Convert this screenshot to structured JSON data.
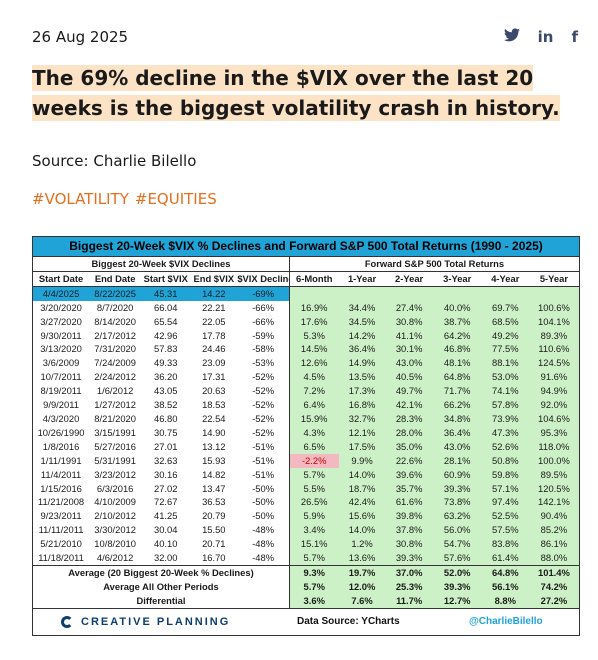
{
  "header": {
    "date": "26 Aug 2025",
    "social": [
      {
        "icon": "twitter-icon",
        "glyph": "🐦"
      },
      {
        "icon": "linkedin-icon",
        "glyph": "in"
      },
      {
        "icon": "facebook-icon",
        "glyph": "f"
      }
    ]
  },
  "article": {
    "headline": "The 69% decline in the $VIX over the last 20 weeks is the biggest volatility crash in history.",
    "source": "Source: Charlie Bilello",
    "tags": [
      "#VOLATILITY",
      "#EQUITIES"
    ]
  },
  "table": {
    "title": "Biggest 20-Week $VIX % Declines and Forward S&P 500 Total Returns (1990 - 2025)",
    "left_group": "Biggest 20-Week $VIX Declines",
    "right_group": "Forward S&P 500 Total Returns",
    "columns": [
      "Start Date",
      "End Date",
      "Start $VIX",
      "End $VIX",
      "$VIX Decline",
      "6-Month",
      "1-Year",
      "2-Year",
      "3-Year",
      "4-Year",
      "5-Year"
    ],
    "rows": [
      [
        "4/4/2025",
        "8/22/2025",
        "45.31",
        "14.22",
        "-69%",
        "",
        "",
        "",
        "",
        "",
        ""
      ],
      [
        "3/20/2020",
        "8/7/2020",
        "66.04",
        "22.21",
        "-66%",
        "16.9%",
        "34.4%",
        "27.4%",
        "40.0%",
        "69.7%",
        "100.6%"
      ],
      [
        "3/27/2020",
        "8/14/2020",
        "65.54",
        "22.05",
        "-66%",
        "17.6%",
        "34.5%",
        "30.8%",
        "38.7%",
        "68.5%",
        "104.1%"
      ],
      [
        "9/30/2011",
        "2/17/2012",
        "42.96",
        "17.78",
        "-59%",
        "5.3%",
        "14.2%",
        "41.1%",
        "64.2%",
        "49.2%",
        "89.3%"
      ],
      [
        "3/13/2020",
        "7/31/2020",
        "57.83",
        "24.46",
        "-58%",
        "14.5%",
        "36.4%",
        "30.1%",
        "46.8%",
        "77.5%",
        "110.6%"
      ],
      [
        "3/6/2009",
        "7/24/2009",
        "49.33",
        "23.09",
        "-53%",
        "12.6%",
        "14.9%",
        "43.0%",
        "48.1%",
        "88.1%",
        "124.5%"
      ],
      [
        "10/7/2011",
        "2/24/2012",
        "36.20",
        "17.31",
        "-52%",
        "4.5%",
        "13.5%",
        "40.5%",
        "64.8%",
        "53.0%",
        "91.6%"
      ],
      [
        "8/19/2011",
        "1/6/2012",
        "43.05",
        "20.63",
        "-52%",
        "7.2%",
        "17.3%",
        "49.7%",
        "71.7%",
        "74.1%",
        "94.9%"
      ],
      [
        "9/9/2011",
        "1/27/2012",
        "38.52",
        "18.53",
        "-52%",
        "6.4%",
        "16.8%",
        "42.1%",
        "66.2%",
        "57.8%",
        "92.0%"
      ],
      [
        "4/3/2020",
        "8/21/2020",
        "46.80",
        "22.54",
        "-52%",
        "15.9%",
        "32.7%",
        "28.3%",
        "34.8%",
        "73.9%",
        "104.6%"
      ],
      [
        "10/26/1990",
        "3/15/1991",
        "30.75",
        "14.90",
        "-52%",
        "4.3%",
        "12.1%",
        "28.0%",
        "36.4%",
        "47.3%",
        "95.3%"
      ],
      [
        "1/8/2016",
        "5/27/2016",
        "27.01",
        "13.12",
        "-51%",
        "6.5%",
        "17.5%",
        "35.0%",
        "43.0%",
        "52.6%",
        "118.0%"
      ],
      [
        "1/11/1991",
        "5/31/1991",
        "32.63",
        "15.93",
        "-51%",
        "-2.2%",
        "9.9%",
        "22.6%",
        "28.1%",
        "50.8%",
        "100.0%"
      ],
      [
        "11/4/2011",
        "3/23/2012",
        "30.16",
        "14.82",
        "-51%",
        "5.7%",
        "14.0%",
        "39.6%",
        "60.9%",
        "59.8%",
        "89.5%"
      ],
      [
        "1/15/2016",
        "6/3/2016",
        "27.02",
        "13.47",
        "-50%",
        "5.5%",
        "18.7%",
        "35.7%",
        "39.3%",
        "57.1%",
        "120.5%"
      ],
      [
        "11/21/2008",
        "4/10/2009",
        "72.67",
        "36.53",
        "-50%",
        "26.5%",
        "42.4%",
        "61.6%",
        "73.8%",
        "97.4%",
        "142.1%"
      ],
      [
        "9/23/2011",
        "2/10/2012",
        "41.25",
        "20.79",
        "-50%",
        "5.9%",
        "15.6%",
        "39.8%",
        "63.2%",
        "52.5%",
        "90.4%"
      ],
      [
        "11/11/2011",
        "3/30/2012",
        "30.04",
        "15.50",
        "-48%",
        "3.4%",
        "14.0%",
        "37.8%",
        "56.0%",
        "57.5%",
        "85.2%"
      ],
      [
        "5/21/2010",
        "10/8/2010",
        "40.10",
        "20.71",
        "-48%",
        "15.1%",
        "1.2%",
        "30.8%",
        "54.7%",
        "83.8%",
        "86.1%"
      ],
      [
        "11/18/2011",
        "4/6/2012",
        "32.00",
        "16.70",
        "-48%",
        "5.7%",
        "13.6%",
        "39.3%",
        "57.6%",
        "61.4%",
        "88.0%"
      ]
    ],
    "summary": [
      {
        "label": "Average (20 Biggest 20-Week % Declines)",
        "values": [
          "9.3%",
          "19.7%",
          "37.0%",
          "52.0%",
          "64.8%",
          "101.4%"
        ]
      },
      {
        "label": "Average All Other Periods",
        "values": [
          "5.7%",
          "12.0%",
          "25.3%",
          "39.3%",
          "56.1%",
          "74.2%"
        ]
      },
      {
        "label": "Differential",
        "values": [
          "3.6%",
          "7.6%",
          "11.7%",
          "12.7%",
          "8.8%",
          "27.2%"
        ]
      }
    ],
    "footer": {
      "brand": "CREATIVE PLANNING",
      "data_source": "Data Source: YCharts",
      "handle": "@CharlieBilello"
    },
    "colors": {
      "title_bg": "#20a4d8",
      "positive_bg": "#cdf1c6",
      "negative_bg": "#f4b8c1",
      "brand": "#0f3d6e",
      "tag": "#e46f1f"
    }
  }
}
